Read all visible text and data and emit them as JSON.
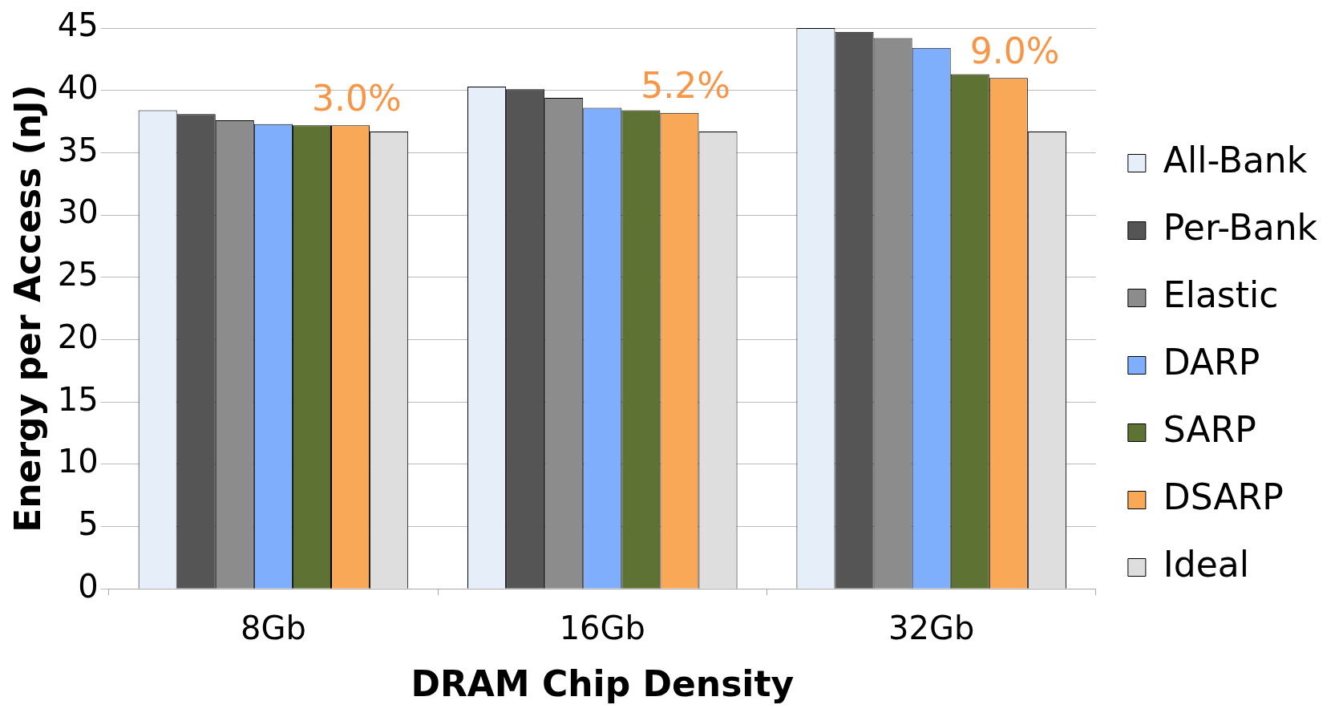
{
  "chart_data": {
    "type": "bar",
    "xlabel": "DRAM Chip Density",
    "ylabel": "Energy per Access (nJ)",
    "categories": [
      "8Gb",
      "16Gb",
      "32Gb"
    ],
    "series": [
      {
        "name": "All-Bank",
        "color": "#e6eef9",
        "values": [
          38.4,
          40.3,
          45.0
        ]
      },
      {
        "name": "Per-Bank",
        "color": "#555555",
        "values": [
          38.1,
          40.1,
          44.7
        ]
      },
      {
        "name": "Elastic",
        "color": "#8c8c8c",
        "values": [
          37.6,
          39.4,
          44.2
        ]
      },
      {
        "name": "DARP",
        "color": "#7eaefc",
        "values": [
          37.3,
          38.6,
          43.4
        ]
      },
      {
        "name": "SARP",
        "color": "#5e7233",
        "values": [
          37.2,
          38.4,
          41.3
        ]
      },
      {
        "name": "DSARP",
        "color": "#f9a857",
        "values": [
          37.2,
          38.2,
          41.0
        ]
      },
      {
        "name": "Ideal",
        "color": "#dedede",
        "values": [
          36.7,
          36.7,
          36.7
        ]
      }
    ],
    "ylim": [
      0,
      45
    ],
    "yticks": [
      0,
      5,
      10,
      15,
      20,
      25,
      30,
      35,
      40,
      45
    ],
    "grid": "y",
    "legend": "right",
    "annotations": [
      "3.0%",
      "5.2%",
      "9.0%"
    ]
  }
}
